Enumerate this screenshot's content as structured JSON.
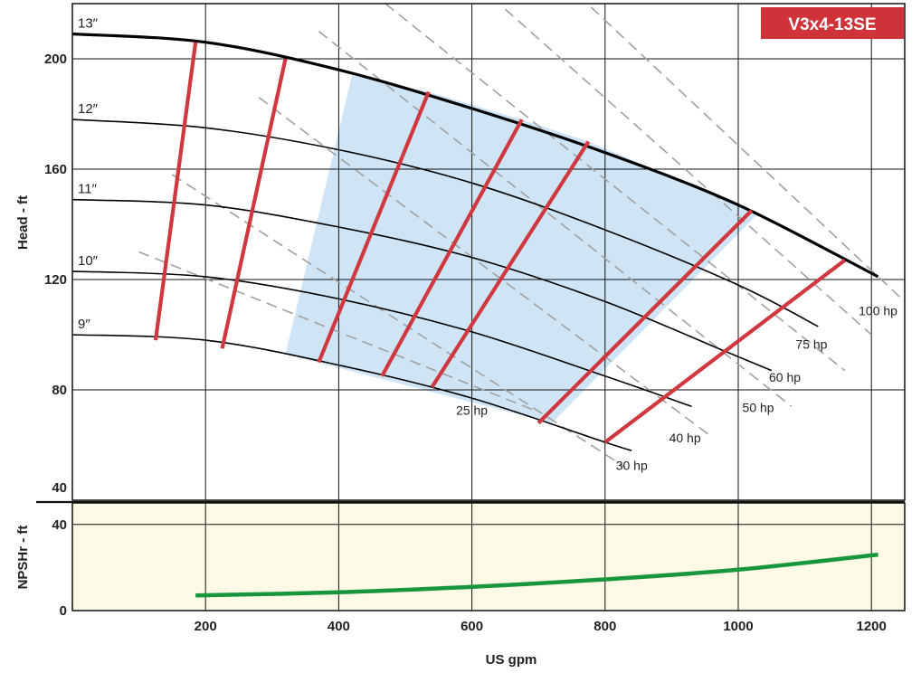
{
  "chart_data": [
    {
      "type": "line",
      "title": "V3x4-13SE",
      "xlabel": "US gpm",
      "ylabel": "Head - ft",
      "xlim": [
        0,
        1250
      ],
      "ylim": [
        40,
        220
      ],
      "x_ticks": [
        200,
        400,
        600,
        800,
        1000,
        1200
      ],
      "y_ticks": [
        40,
        80,
        120,
        160,
        200
      ],
      "grid": true,
      "colors": {
        "badge": "#d0323a",
        "efficiency_line": "#d0383f",
        "preferred_region": "#cfe4f4",
        "hp_line": "#a0a0a0",
        "npsh_background": "#fcf9e6",
        "npsh_line": "#17963c",
        "curve": "#000000"
      },
      "impeller_curves": [
        {
          "name": "13″",
          "x": [
            0,
            200,
            400,
            600,
            800,
            1000,
            1210
          ],
          "y": [
            209,
            206,
            196,
            182,
            166,
            147,
            121
          ]
        },
        {
          "name": "12″",
          "x": [
            0,
            200,
            400,
            600,
            800,
            1000,
            1120
          ],
          "y": [
            178,
            175,
            167,
            155,
            138,
            118,
            103
          ]
        },
        {
          "name": "11″",
          "x": [
            0,
            200,
            400,
            600,
            800,
            980,
            1050
          ],
          "y": [
            149,
            147,
            139,
            128,
            112,
            94,
            87
          ]
        },
        {
          "name": "10″",
          "x": [
            0,
            200,
            400,
            600,
            800,
            930
          ],
          "y": [
            123,
            121,
            113,
            101,
            85,
            74
          ]
        },
        {
          "name": "9″",
          "x": [
            0,
            200,
            400,
            600,
            800,
            840
          ],
          "y": [
            100,
            98,
            89,
            77,
            61,
            58
          ]
        }
      ],
      "efficiency_lines": [
        {
          "x": [
            125,
            185
          ],
          "y": [
            98,
            206
          ]
        },
        {
          "x": [
            225,
            320
          ],
          "y": [
            95,
            200
          ]
        },
        {
          "x": [
            370,
            535
          ],
          "y": [
            90,
            188
          ]
        },
        {
          "x": [
            465,
            675
          ],
          "y": [
            85,
            178
          ]
        },
        {
          "x": [
            540,
            775
          ],
          "y": [
            81,
            170
          ]
        },
        {
          "x": [
            700,
            1020
          ],
          "y": [
            68,
            145
          ]
        },
        {
          "x": [
            800,
            1160
          ],
          "y": [
            61,
            127
          ]
        }
      ],
      "preferred_region": {
        "x": [
          320,
          420,
          535,
          675,
          775,
          1030,
          720
        ],
        "y": [
          93,
          194,
          188,
          178,
          170,
          144,
          68
        ]
      },
      "hp_lines": [
        {
          "name": "25 hp",
          "x": [
            100,
            700
          ],
          "y": [
            130,
            72
          ],
          "label_at": [
            600,
            71
          ]
        },
        {
          "name": "30 hp",
          "x": [
            150,
            830
          ],
          "y": [
            158,
            52
          ],
          "label_at": [
            840,
            51
          ]
        },
        {
          "name": "40 hp",
          "x": [
            280,
            960
          ],
          "y": [
            186,
            63
          ],
          "label_at": [
            920,
            61
          ]
        },
        {
          "name": "50 hp",
          "x": [
            370,
            1080
          ],
          "y": [
            210,
            74
          ],
          "label_at": [
            1030,
            72
          ]
        },
        {
          "name": "60 hp",
          "x": [
            470,
            1160
          ],
          "y": [
            220,
            87
          ],
          "label_at": [
            1070,
            83
          ]
        },
        {
          "name": "75 hp",
          "x": [
            650,
            1200
          ],
          "y": [
            218,
            100
          ],
          "label_at": [
            1110,
            95
          ]
        },
        {
          "name": "100 hp",
          "x": [
            760,
            1250
          ],
          "y": [
            223,
            112
          ],
          "label_at": [
            1210,
            107
          ]
        }
      ]
    },
    {
      "type": "line",
      "xlabel": "US gpm",
      "ylabel": "NPSHr - ft",
      "xlim": [
        0,
        1250
      ],
      "ylim": [
        0,
        50
      ],
      "x_ticks": [
        200,
        400,
        600,
        800,
        1000,
        1200
      ],
      "y_ticks": [
        0,
        40
      ],
      "grid": true,
      "series": [
        {
          "x": [
            185,
            400,
            600,
            800,
            1000,
            1210
          ],
          "y": [
            7,
            8.5,
            11,
            14.5,
            19,
            26
          ]
        }
      ]
    }
  ]
}
